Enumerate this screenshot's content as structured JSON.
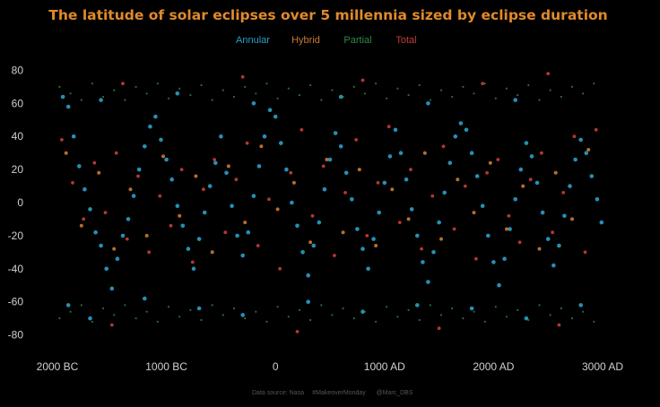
{
  "colors": {
    "background": "#000000",
    "title": "#e08a2a",
    "tick_label": "#cfcfcf",
    "footer": "#555555",
    "Annular": "#2aa0c8",
    "Hybrid": "#c87a32",
    "Partial": "#2f8a4a",
    "Total": "#c83c3c"
  },
  "chart_data": {
    "type": "scatter",
    "title": "The latitude of solar eclipses over 5 millennia sized by eclipse duration",
    "xlabel": "",
    "ylabel": "",
    "x_ticks": [
      {
        "label": "2000 BC",
        "value": -2000
      },
      {
        "label": "1000 BC",
        "value": -1000
      },
      {
        "label": "0",
        "value": 0
      },
      {
        "label": "1000 AD",
        "value": 1000
      },
      {
        "label": "2000 AD",
        "value": 2000
      },
      {
        "label": "3000 AD",
        "value": 3000
      }
    ],
    "y_ticks": [
      80,
      60,
      40,
      20,
      0,
      -20,
      -40,
      -60,
      -80
    ],
    "xlim": [
      -2000,
      3000
    ],
    "ylim": [
      -90,
      90
    ],
    "grid": false,
    "legend": {
      "placement": "top-center",
      "entries": [
        "Annular",
        "Hybrid",
        "Partial",
        "Total"
      ]
    },
    "series": [
      {
        "name": "Annular",
        "points": [
          [
            -1950,
            64
          ],
          [
            -1900,
            58
          ],
          [
            -1850,
            40
          ],
          [
            -1800,
            22
          ],
          [
            -1750,
            8
          ],
          [
            -1700,
            -4
          ],
          [
            -1650,
            -18
          ],
          [
            -1600,
            -26
          ],
          [
            -1550,
            -40
          ],
          [
            -1500,
            -52
          ],
          [
            -1450,
            -34
          ],
          [
            -1400,
            -20
          ],
          [
            -1350,
            -10
          ],
          [
            -1300,
            4
          ],
          [
            -1250,
            20
          ],
          [
            -1200,
            34
          ],
          [
            -1150,
            46
          ],
          [
            -1100,
            52
          ],
          [
            -1050,
            38
          ],
          [
            -1000,
            26
          ],
          [
            -950,
            14
          ],
          [
            -900,
            -2
          ],
          [
            -850,
            -14
          ],
          [
            -800,
            -28
          ],
          [
            -750,
            -40
          ],
          [
            -700,
            -22
          ],
          [
            -650,
            -6
          ],
          [
            -600,
            10
          ],
          [
            -550,
            24
          ],
          [
            -500,
            40
          ],
          [
            -450,
            18
          ],
          [
            -400,
            -2
          ],
          [
            -350,
            -20
          ],
          [
            -300,
            -32
          ],
          [
            -250,
            -18
          ],
          [
            -200,
            4
          ],
          [
            -150,
            22
          ],
          [
            -100,
            40
          ],
          [
            -50,
            56
          ],
          [
            0,
            52
          ],
          [
            50,
            36
          ],
          [
            100,
            20
          ],
          [
            150,
            0
          ],
          [
            200,
            -14
          ],
          [
            250,
            -30
          ],
          [
            300,
            -44
          ],
          [
            350,
            -26
          ],
          [
            400,
            -12
          ],
          [
            450,
            8
          ],
          [
            500,
            26
          ],
          [
            550,
            42
          ],
          [
            600,
            34
          ],
          [
            650,
            18
          ],
          [
            700,
            2
          ],
          [
            750,
            -16
          ],
          [
            800,
            -28
          ],
          [
            850,
            -40
          ],
          [
            900,
            -22
          ],
          [
            950,
            -6
          ],
          [
            1000,
            12
          ],
          [
            1050,
            28
          ],
          [
            1100,
            44
          ],
          [
            1150,
            30
          ],
          [
            1200,
            14
          ],
          [
            1250,
            -4
          ],
          [
            1300,
            -20
          ],
          [
            1350,
            -36
          ],
          [
            1400,
            -48
          ],
          [
            1450,
            -30
          ],
          [
            1500,
            -12
          ],
          [
            1550,
            6
          ],
          [
            1600,
            24
          ],
          [
            1650,
            40
          ],
          [
            1700,
            48
          ],
          [
            1750,
            44
          ],
          [
            1800,
            30
          ],
          [
            1850,
            16
          ],
          [
            1900,
            -2
          ],
          [
            1950,
            -20
          ],
          [
            2000,
            -36
          ],
          [
            2050,
            -50
          ],
          [
            2100,
            -34
          ],
          [
            2150,
            -16
          ],
          [
            2200,
            2
          ],
          [
            2250,
            20
          ],
          [
            2300,
            36
          ],
          [
            2350,
            28
          ],
          [
            2400,
            12
          ],
          [
            2450,
            -6
          ],
          [
            2500,
            -22
          ],
          [
            2550,
            -38
          ],
          [
            2600,
            -26
          ],
          [
            2650,
            -8
          ],
          [
            2700,
            10
          ],
          [
            2750,
            26
          ],
          [
            2800,
            38
          ],
          [
            2850,
            30
          ],
          [
            2900,
            16
          ],
          [
            2950,
            2
          ],
          [
            2990,
            -12
          ],
          [
            -1900,
            -62
          ],
          [
            -1700,
            -70
          ],
          [
            -1200,
            -58
          ],
          [
            -700,
            -64
          ],
          [
            -300,
            -68
          ],
          [
            300,
            -60
          ],
          [
            800,
            -66
          ],
          [
            1300,
            -62
          ],
          [
            1800,
            -64
          ],
          [
            2300,
            -70
          ],
          [
            2800,
            -62
          ],
          [
            -1600,
            62
          ],
          [
            -900,
            66
          ],
          [
            -200,
            60
          ],
          [
            600,
            64
          ],
          [
            1400,
            60
          ],
          [
            2200,
            62
          ]
        ]
      },
      {
        "name": "Hybrid",
        "points": [
          [
            -1920,
            30
          ],
          [
            -1780,
            -14
          ],
          [
            -1620,
            18
          ],
          [
            -1480,
            -28
          ],
          [
            -1330,
            8
          ],
          [
            -1180,
            -20
          ],
          [
            -1030,
            28
          ],
          [
            -880,
            -8
          ],
          [
            -730,
            16
          ],
          [
            -580,
            -30
          ],
          [
            -430,
            22
          ],
          [
            -280,
            -12
          ],
          [
            -130,
            34
          ],
          [
            20,
            -4
          ],
          [
            170,
            12
          ],
          [
            320,
            -24
          ],
          [
            470,
            26
          ],
          [
            620,
            -18
          ],
          [
            770,
            20
          ],
          [
            920,
            -26
          ],
          [
            1070,
            8
          ],
          [
            1220,
            -10
          ],
          [
            1370,
            30
          ],
          [
            1520,
            -22
          ],
          [
            1670,
            14
          ],
          [
            1820,
            -6
          ],
          [
            1970,
            24
          ],
          [
            2120,
            -16
          ],
          [
            2270,
            10
          ],
          [
            2420,
            -28
          ],
          [
            2570,
            18
          ],
          [
            2720,
            -10
          ],
          [
            2870,
            32
          ]
        ]
      },
      {
        "name": "Partial",
        "points": [
          [
            -1980,
            70
          ],
          [
            -1880,
            66
          ],
          [
            -1780,
            62
          ],
          [
            -1680,
            72
          ],
          [
            -1580,
            64
          ],
          [
            -1480,
            68
          ],
          [
            -1380,
            62
          ],
          [
            -1280,
            70
          ],
          [
            -1180,
            66
          ],
          [
            -1080,
            72
          ],
          [
            -980,
            63
          ],
          [
            -880,
            69
          ],
          [
            -780,
            65
          ],
          [
            -680,
            71
          ],
          [
            -580,
            62
          ],
          [
            -480,
            68
          ],
          [
            -380,
            64
          ],
          [
            -280,
            70
          ],
          [
            -180,
            66
          ],
          [
            -80,
            72
          ],
          [
            20,
            63
          ],
          [
            120,
            69
          ],
          [
            220,
            65
          ],
          [
            320,
            71
          ],
          [
            420,
            62
          ],
          [
            520,
            68
          ],
          [
            620,
            64
          ],
          [
            720,
            70
          ],
          [
            820,
            66
          ],
          [
            920,
            72
          ],
          [
            1020,
            63
          ],
          [
            1120,
            69
          ],
          [
            1220,
            65
          ],
          [
            1320,
            71
          ],
          [
            1420,
            62
          ],
          [
            1520,
            68
          ],
          [
            1620,
            64
          ],
          [
            1720,
            70
          ],
          [
            1820,
            66
          ],
          [
            1920,
            72
          ],
          [
            2020,
            63
          ],
          [
            2120,
            69
          ],
          [
            2220,
            65
          ],
          [
            2320,
            71
          ],
          [
            2420,
            62
          ],
          [
            2520,
            68
          ],
          [
            2620,
            64
          ],
          [
            2720,
            70
          ],
          [
            2820,
            66
          ],
          [
            2920,
            72
          ],
          [
            -1980,
            -70
          ],
          [
            -1880,
            -66
          ],
          [
            -1780,
            -62
          ],
          [
            -1680,
            -72
          ],
          [
            -1580,
            -64
          ],
          [
            -1480,
            -68
          ],
          [
            -1380,
            -62
          ],
          [
            -1280,
            -70
          ],
          [
            -1180,
            -66
          ],
          [
            -1080,
            -72
          ],
          [
            -980,
            -63
          ],
          [
            -880,
            -69
          ],
          [
            -780,
            -65
          ],
          [
            -680,
            -71
          ],
          [
            -580,
            -62
          ],
          [
            -480,
            -68
          ],
          [
            -380,
            -64
          ],
          [
            -280,
            -70
          ],
          [
            -180,
            -66
          ],
          [
            -80,
            -72
          ],
          [
            20,
            -63
          ],
          [
            120,
            -69
          ],
          [
            220,
            -65
          ],
          [
            320,
            -71
          ],
          [
            420,
            -62
          ],
          [
            520,
            -68
          ],
          [
            620,
            -64
          ],
          [
            720,
            -70
          ],
          [
            820,
            -66
          ],
          [
            920,
            -72
          ],
          [
            1020,
            -63
          ],
          [
            1120,
            -69
          ],
          [
            1220,
            -65
          ],
          [
            1320,
            -71
          ],
          [
            1420,
            -62
          ],
          [
            1520,
            -68
          ],
          [
            1620,
            -64
          ],
          [
            1720,
            -70
          ],
          [
            1820,
            -66
          ],
          [
            1920,
            -72
          ],
          [
            2020,
            -63
          ],
          [
            2120,
            -69
          ],
          [
            2220,
            -65
          ],
          [
            2320,
            -71
          ],
          [
            2420,
            -62
          ],
          [
            2520,
            -68
          ],
          [
            2620,
            -64
          ],
          [
            2720,
            -70
          ],
          [
            2820,
            -66
          ],
          [
            2920,
            -72
          ]
        ]
      },
      {
        "name": "Total",
        "points": [
          [
            -1960,
            38
          ],
          [
            -1860,
            12
          ],
          [
            -1760,
            -10
          ],
          [
            -1660,
            24
          ],
          [
            -1560,
            -6
          ],
          [
            -1460,
            30
          ],
          [
            -1360,
            -22
          ],
          [
            -1260,
            16
          ],
          [
            -1160,
            -30
          ],
          [
            -1060,
            4
          ],
          [
            -960,
            -14
          ],
          [
            -860,
            20
          ],
          [
            -760,
            -36
          ],
          [
            -660,
            8
          ],
          [
            -560,
            26
          ],
          [
            -460,
            -18
          ],
          [
            -360,
            14
          ],
          [
            -260,
            36
          ],
          [
            -160,
            -26
          ],
          [
            -60,
            2
          ],
          [
            40,
            -40
          ],
          [
            140,
            18
          ],
          [
            240,
            44
          ],
          [
            340,
            -8
          ],
          [
            440,
            22
          ],
          [
            540,
            -32
          ],
          [
            640,
            6
          ],
          [
            740,
            38
          ],
          [
            840,
            -20
          ],
          [
            940,
            12
          ],
          [
            1040,
            46
          ],
          [
            1140,
            -12
          ],
          [
            1240,
            20
          ],
          [
            1340,
            -28
          ],
          [
            1440,
            4
          ],
          [
            1540,
            34
          ],
          [
            1640,
            -16
          ],
          [
            1740,
            10
          ],
          [
            1840,
            -34
          ],
          [
            1940,
            18
          ],
          [
            2040,
            26
          ],
          [
            2140,
            -8
          ],
          [
            2240,
            -24
          ],
          [
            2340,
            14
          ],
          [
            2440,
            30
          ],
          [
            2540,
            -18
          ],
          [
            2640,
            6
          ],
          [
            2740,
            40
          ],
          [
            2840,
            -30
          ],
          [
            2940,
            44
          ],
          [
            -1400,
            72
          ],
          [
            -300,
            76
          ],
          [
            800,
            74
          ],
          [
            1900,
            72
          ],
          [
            2500,
            78
          ],
          [
            -1500,
            -74
          ],
          [
            200,
            -78
          ],
          [
            1500,
            -76
          ],
          [
            2600,
            -74
          ]
        ]
      }
    ],
    "footer": [
      "Data source: Nasa",
      "#MakeoverMonday",
      "@Marc_DBS"
    ]
  }
}
